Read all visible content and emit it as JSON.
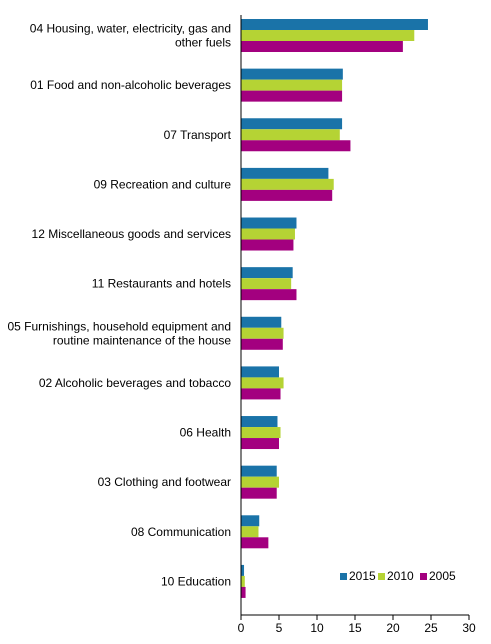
{
  "chart_data": {
    "type": "bar",
    "orientation": "horizontal",
    "title": "",
    "xlabel": "",
    "ylabel": "",
    "xlim": [
      0,
      30
    ],
    "x_ticks": [
      "0",
      "5",
      "10",
      "15",
      "20",
      "25",
      "30"
    ],
    "x_tick_values": [
      0,
      5,
      10,
      15,
      20,
      25,
      30
    ],
    "grid": false,
    "legend_position": "bottom-right",
    "categories": [
      [
        "04 Housing, water, electricity, gas and",
        "other fuels"
      ],
      [
        "01 Food and non-alcoholic beverages"
      ],
      [
        "07 Transport"
      ],
      [
        "09 Recreation and culture"
      ],
      [
        "12 Miscellaneous goods and services"
      ],
      [
        "11 Restaurants and hotels"
      ],
      [
        "05 Furnishings, household equipment and",
        "routine maintenance of the house"
      ],
      [
        "02 Alcoholic beverages and tobacco"
      ],
      [
        "06 Health"
      ],
      [
        "03 Clothing and footwear"
      ],
      [
        "08 Communication"
      ],
      [
        "10 Education"
      ]
    ],
    "series": [
      {
        "name": "2015",
        "color": "#1a73a8",
        "values": [
          24.6,
          13.4,
          13.3,
          11.5,
          7.3,
          6.8,
          5.3,
          5.0,
          4.8,
          4.7,
          2.4,
          0.4
        ]
      },
      {
        "name": "2010",
        "color": "#b5d334",
        "values": [
          22.8,
          13.3,
          13.0,
          12.2,
          7.1,
          6.6,
          5.6,
          5.6,
          5.2,
          5.0,
          2.3,
          0.5
        ]
      },
      {
        "name": "2005",
        "color": "#a3007f",
        "values": [
          21.3,
          13.3,
          14.4,
          12.0,
          6.9,
          7.3,
          5.5,
          5.2,
          5.0,
          4.7,
          3.6,
          0.6
        ]
      }
    ]
  }
}
